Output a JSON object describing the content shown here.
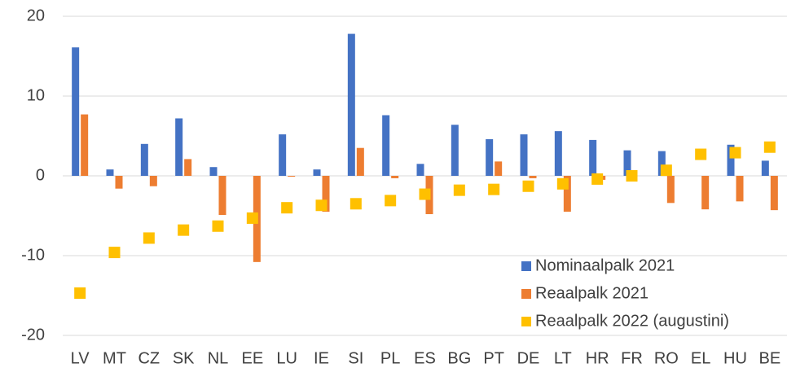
{
  "chart_data": {
    "type": "bar",
    "categories": [
      "LV",
      "MT",
      "CZ",
      "SK",
      "NL",
      "EE",
      "LU",
      "IE",
      "SI",
      "PL",
      "ES",
      "BG",
      "PT",
      "DE",
      "LT",
      "HR",
      "FR",
      "RO",
      "EL",
      "HU",
      "BE"
    ],
    "series": [
      {
        "name": "Nominaalpalk 2021",
        "color": "#4472c4",
        "values": [
          16.1,
          0.8,
          4.0,
          7.2,
          1.1,
          null,
          5.2,
          0.8,
          17.8,
          7.6,
          1.5,
          6.4,
          4.6,
          5.2,
          5.6,
          4.5,
          3.2,
          3.1,
          null,
          3.9,
          1.9
        ]
      },
      {
        "name": "Reaalpalk 2021",
        "color": "#ed7d31",
        "values": [
          7.7,
          -1.6,
          -1.3,
          2.1,
          -4.9,
          -10.8,
          -0.1,
          -4.5,
          3.5,
          -0.3,
          -4.8,
          null,
          1.8,
          -0.3,
          -4.5,
          -0.5,
          0,
          -3.4,
          -4.2,
          -3.2,
          -4.3
        ]
      },
      {
        "name": "Reaalpalk 2022 (augustini)",
        "color": "#ffc000",
        "marker": "square",
        "values": [
          -14.7,
          -9.6,
          -7.8,
          -6.8,
          -6.3,
          -5.3,
          -4.0,
          -3.7,
          -3.5,
          -3.1,
          -2.3,
          -1.8,
          -1.7,
          -1.3,
          -1.0,
          -0.4,
          0,
          0.7,
          2.7,
          2.9,
          3.6
        ]
      }
    ],
    "ylim": [
      -20,
      20
    ],
    "yticks": [
      -20,
      -10,
      0,
      10,
      20
    ],
    "grid": true,
    "legend": "lower-right"
  }
}
